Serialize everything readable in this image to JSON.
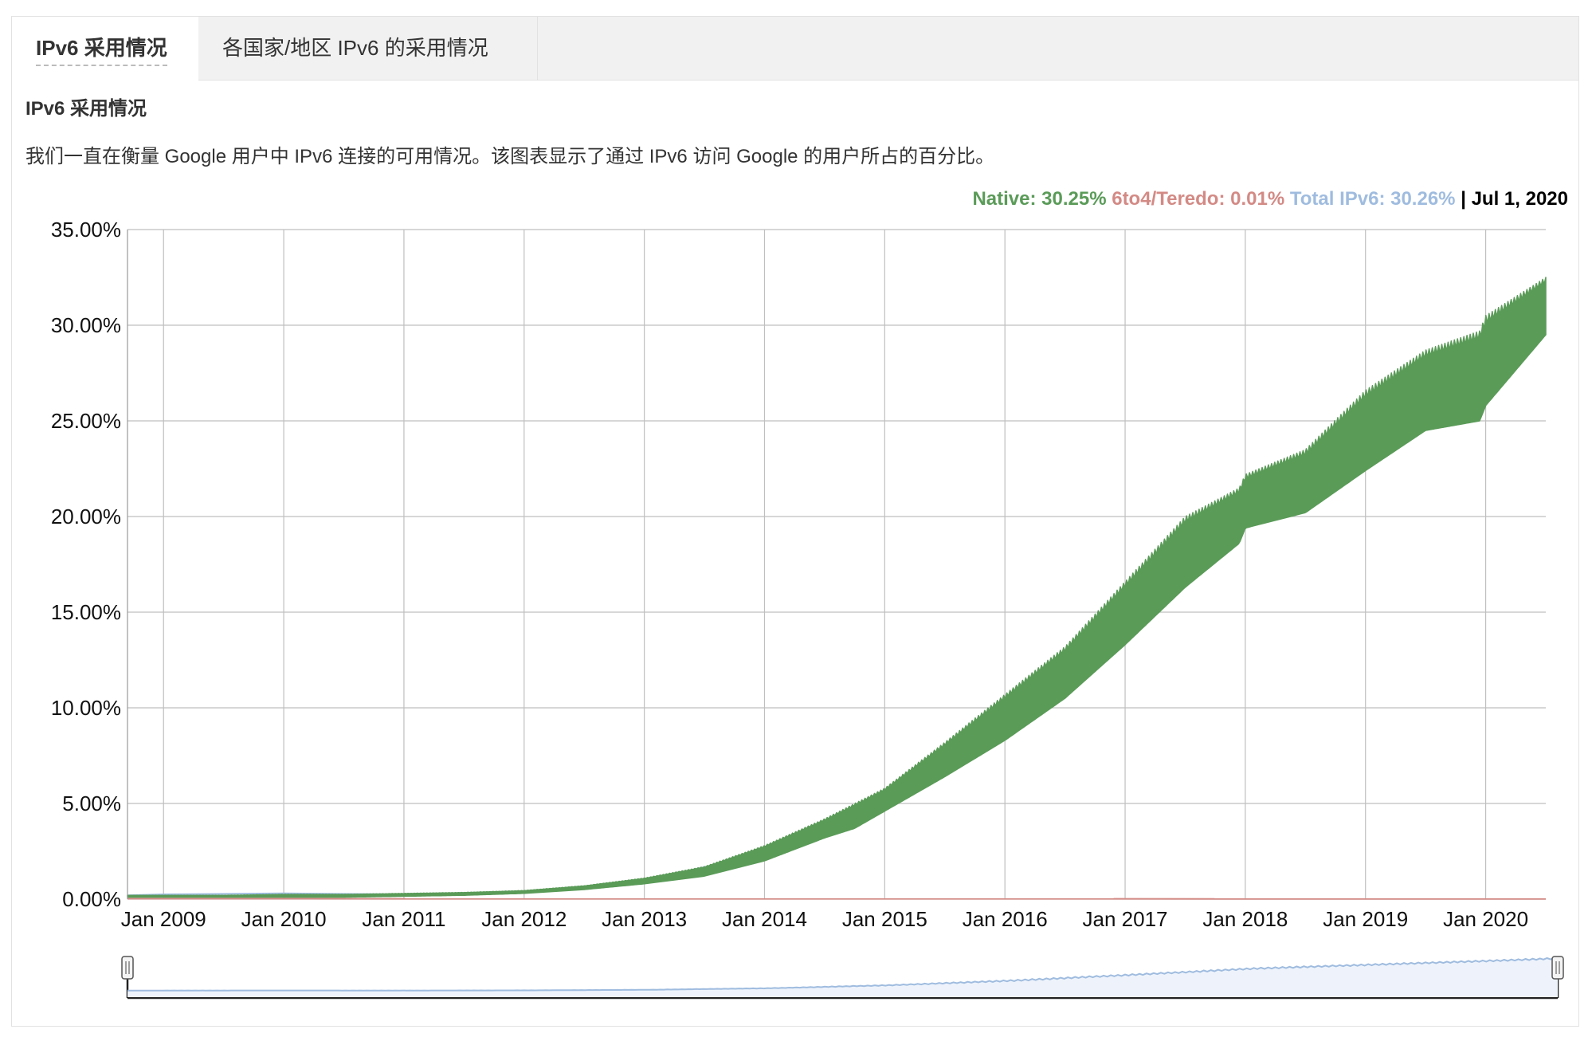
{
  "tabs": [
    {
      "label": "IPv6 采用情况",
      "active": true
    },
    {
      "label": "各国家/地区 IPv6 的采用情况",
      "active": false
    }
  ],
  "section": {
    "title": "IPv6 采用情况",
    "description": "我们一直在衡量 Google 用户中 IPv6 连接的可用情况。该图表显示了通过 IPv6 访问 Google 的用户所占的百分比。"
  },
  "legend": {
    "native": "Native: 30.25%",
    "teredo": "6to4/Teredo: 0.01%",
    "total": "Total IPv6: 30.26%",
    "separator": "|",
    "date": "Jul 1, 2020"
  },
  "colors": {
    "native": "#5a9b58",
    "teredo": "#d38a85",
    "total": "#9fbcdf",
    "grid": "#bfbfbf"
  },
  "chart_data": {
    "type": "area",
    "ylim": [
      0,
      35
    ],
    "yticks": [
      "0.00%",
      "5.00%",
      "10.00%",
      "15.00%",
      "20.00%",
      "25.00%",
      "30.00%",
      "35.00%"
    ],
    "xlim": [
      2008.7,
      2020.5
    ],
    "xticks": [
      {
        "label": "Jan 2009",
        "x": 2009
      },
      {
        "label": "Jan 2010",
        "x": 2010
      },
      {
        "label": "Jan 2011",
        "x": 2011
      },
      {
        "label": "Jan 2012",
        "x": 2012
      },
      {
        "label": "Jan 2013",
        "x": 2013
      },
      {
        "label": "Jan 2014",
        "x": 2014
      },
      {
        "label": "Jan 2015",
        "x": 2015
      },
      {
        "label": "Jan 2016",
        "x": 2016
      },
      {
        "label": "Jan 2017",
        "x": 2017
      },
      {
        "label": "Jan 2018",
        "x": 2018
      },
      {
        "label": "Jan 2019",
        "x": 2019
      },
      {
        "label": "Jan 2020",
        "x": 2020
      }
    ],
    "series": [
      {
        "name": "Native",
        "x": [
          2008.7,
          2009.0,
          2009.5,
          2010.0,
          2010.5,
          2011.0,
          2011.5,
          2012.0,
          2012.5,
          2013.0,
          2013.5,
          2014.0,
          2014.5,
          2014.75,
          2015.0,
          2015.5,
          2016.0,
          2016.5,
          2017.0,
          2017.5,
          2017.95,
          2018.0,
          2018.5,
          2019.0,
          2019.5,
          2019.95,
          2020.0,
          2020.5
        ],
        "low": [
          0.1,
          0.1,
          0.1,
          0.1,
          0.1,
          0.15,
          0.2,
          0.3,
          0.5,
          0.8,
          1.2,
          2.0,
          3.2,
          3.7,
          4.6,
          6.4,
          8.3,
          10.5,
          13.3,
          16.3,
          18.6,
          19.4,
          20.2,
          22.4,
          24.5,
          25.0,
          25.8,
          29.5
        ],
        "high": [
          0.2,
          0.2,
          0.2,
          0.25,
          0.25,
          0.3,
          0.35,
          0.45,
          0.7,
          1.1,
          1.7,
          2.8,
          4.2,
          5.0,
          5.8,
          8.2,
          10.7,
          13.2,
          16.6,
          20.0,
          21.5,
          22.2,
          23.5,
          26.6,
          28.7,
          29.7,
          30.5,
          32.5
        ]
      },
      {
        "name": "6to4/Teredo",
        "x": [
          2008.7,
          2020.5
        ],
        "values": [
          0.02,
          0.01
        ]
      },
      {
        "name": "Total IPv6",
        "x": [
          2008.7,
          2009.0,
          2010.0,
          2011.0,
          2012.0,
          2013.0,
          2014.0,
          2015.0,
          2016.0,
          2017.0,
          2018.0,
          2019.0,
          2020.0,
          2020.5
        ],
        "values": [
          0.2,
          0.25,
          0.3,
          0.25,
          0.4,
          0.95,
          2.4,
          5.2,
          9.5,
          15.0,
          20.8,
          24.5,
          28.2,
          30.26
        ]
      }
    ]
  }
}
